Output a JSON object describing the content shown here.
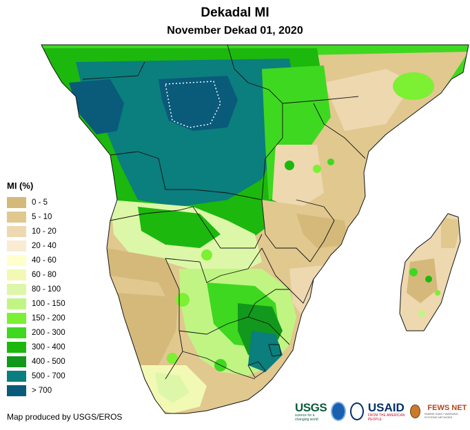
{
  "header": {
    "title": "Dekadal MI",
    "subtitle": "November Dekad 01, 2020"
  },
  "legend": {
    "title": "MI (%)",
    "items": [
      {
        "label": "0 - 5",
        "color": "#d5b97a"
      },
      {
        "label": "5 - 10",
        "color": "#e0c88f"
      },
      {
        "label": "10 - 20",
        "color": "#eed8b0"
      },
      {
        "label": "20 - 40",
        "color": "#f9ecd2"
      },
      {
        "label": "40 - 60",
        "color": "#ffffcc"
      },
      {
        "label": "60 - 80",
        "color": "#f2f9b4"
      },
      {
        "label": "80 - 100",
        "color": "#ddf7a8"
      },
      {
        "label": "100 - 150",
        "color": "#c0f584"
      },
      {
        "label": "150 - 200",
        "color": "#7cf032"
      },
      {
        "label": "200 - 300",
        "color": "#3ed820"
      },
      {
        "label": "300 - 400",
        "color": "#1cb80e"
      },
      {
        "label": "400 - 500",
        "color": "#12981c"
      },
      {
        "label": "500 - 700",
        "color": "#0b7e7e"
      },
      {
        "label": "> 700",
        "color": "#0a5a7a"
      }
    ]
  },
  "footer": {
    "credit": "Map produced by USGS/EROS",
    "logos": {
      "usgs": "USGS",
      "usgs_tagline": "science for a changing world",
      "usaid": "USAID",
      "usaid_tagline": "FROM THE AMERICAN PEOPLE",
      "fews": "FEWS NET",
      "fews_tagline": "FAMINE EARLY WARNING SYSTEMS NETWORK"
    }
  },
  "colors": {
    "ocean": "#ffffff",
    "border": "#111111"
  }
}
